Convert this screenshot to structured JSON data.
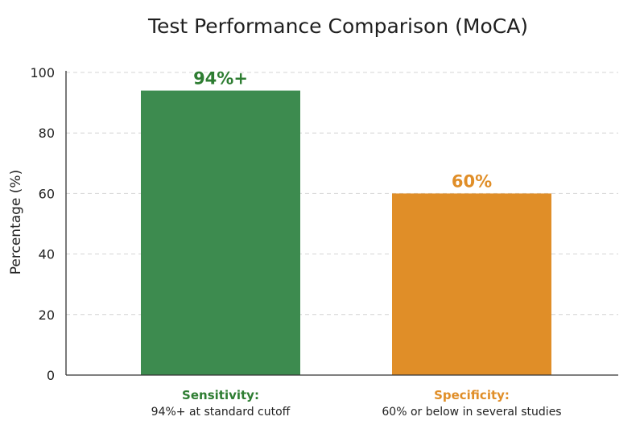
{
  "chart_data": {
    "type": "bar",
    "title": "Test Performance Comparison (MoCA)",
    "xlabel": "",
    "ylabel": "Percentage (%)",
    "ylim": [
      0,
      100
    ],
    "yticks": [
      0,
      20,
      40,
      60,
      80,
      100
    ],
    "grid": true,
    "categories": [
      {
        "name": "Sensitivity:",
        "note": "94%+ at standard cutoff",
        "value": 94,
        "value_label": "94%+",
        "color": "#3d8b4f",
        "label_color": "#2e7d32"
      },
      {
        "name": "Specificity:",
        "note": "60% or below in several studies",
        "value": 60,
        "value_label": "60%",
        "color": "#e08e28",
        "label_color": "#e08e28"
      }
    ]
  }
}
